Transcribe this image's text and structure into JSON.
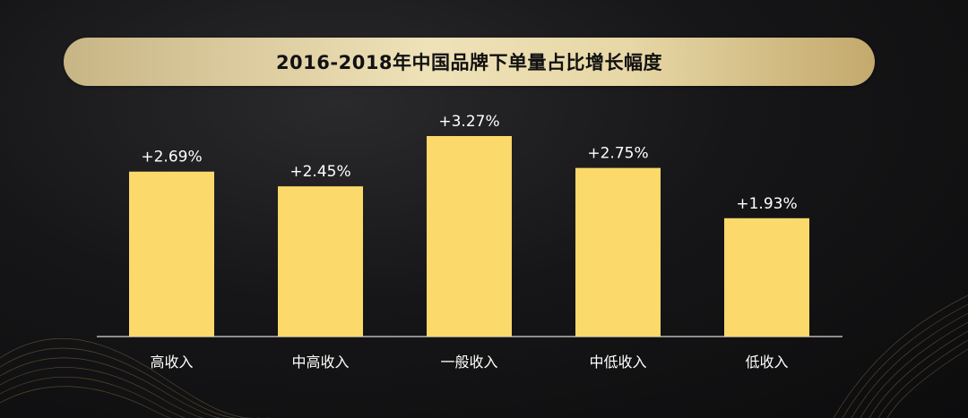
{
  "colors": {
    "bar": "#fbd96b",
    "background": "#141416",
    "title_band": "#e9dbb0",
    "text": "#ffffff"
  },
  "chart_data": {
    "type": "bar",
    "title": "2016-2018年中国品牌下单量占比增长幅度",
    "categories": [
      "高收入",
      "中高收入",
      "一般收入",
      "中低收入",
      "低收入"
    ],
    "values": [
      2.69,
      2.45,
      3.27,
      2.75,
      1.93
    ],
    "value_labels": [
      "+2.69%",
      "+2.45%",
      "+3.27%",
      "+2.75%",
      "+1.93%"
    ],
    "unit": "%",
    "ylim": [
      0,
      3.27
    ],
    "grid": false,
    "legend": "none"
  }
}
